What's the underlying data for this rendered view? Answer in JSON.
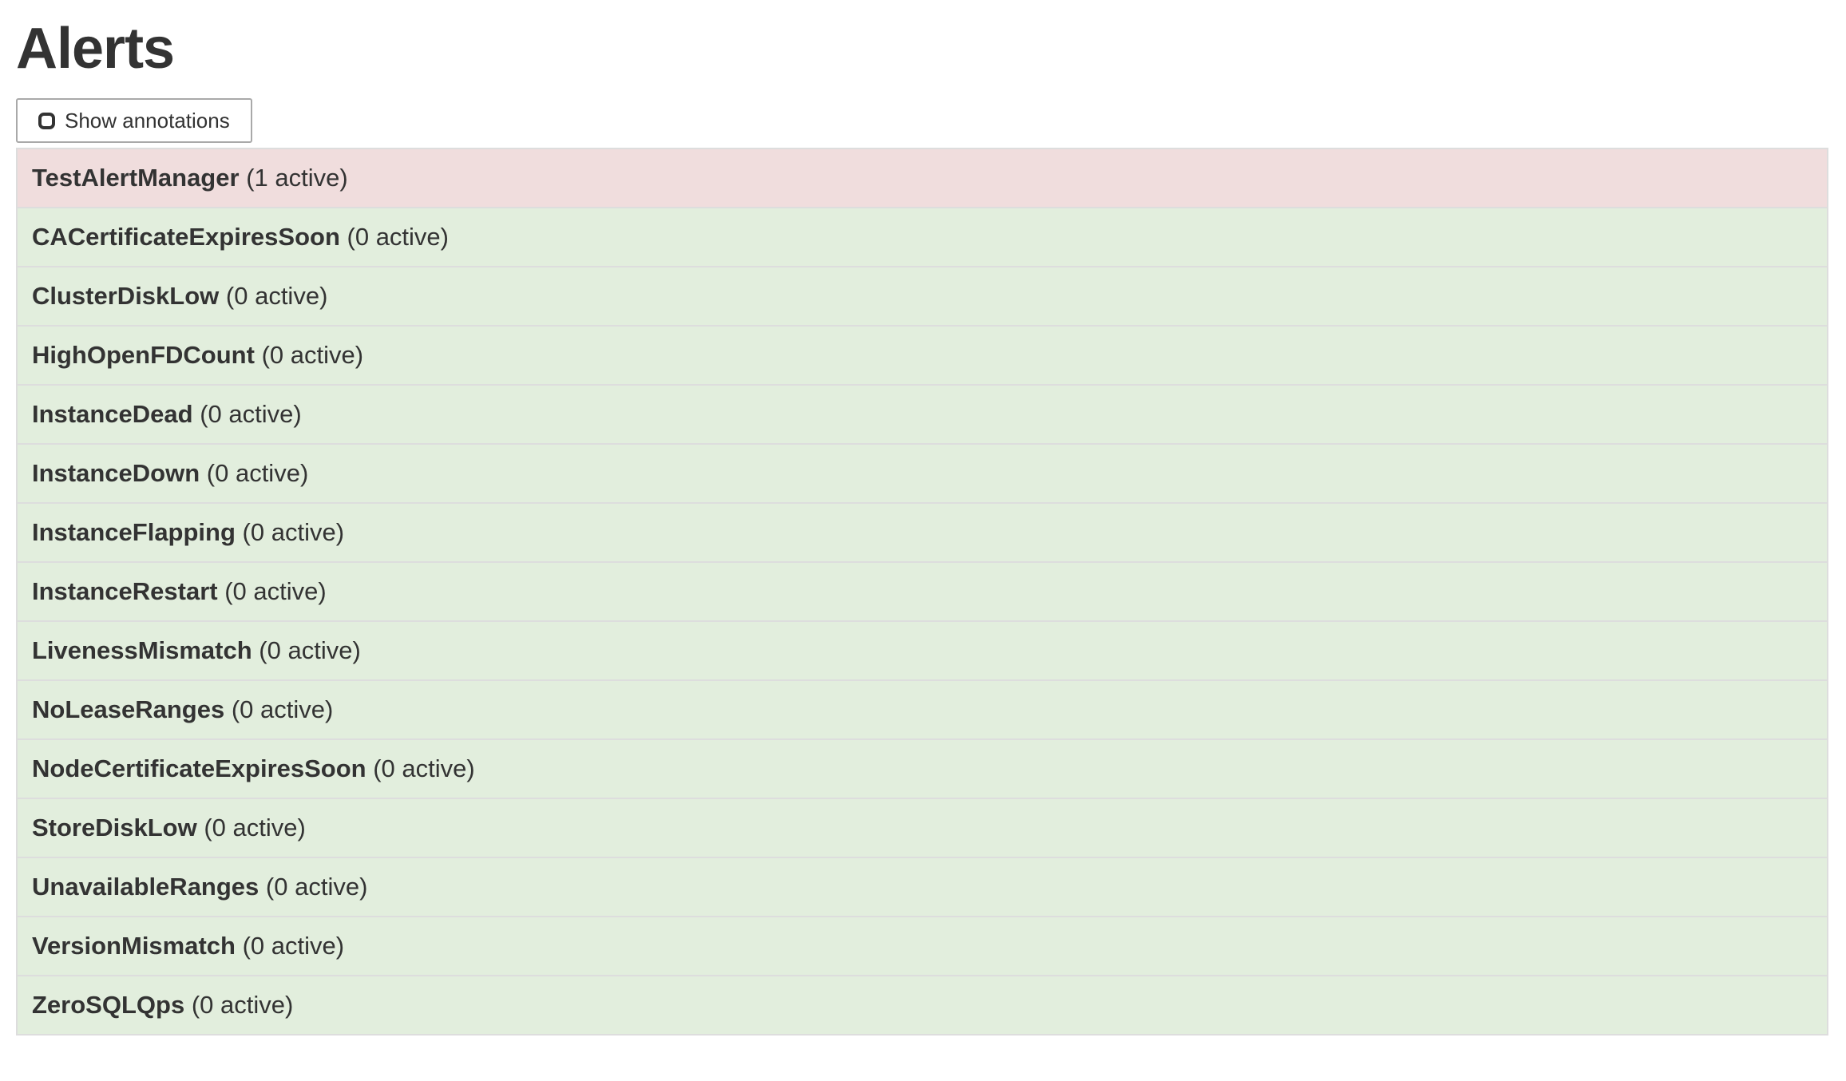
{
  "page": {
    "title": "Alerts"
  },
  "toolbar": {
    "show_annotations_label": "Show annotations",
    "checkbox_checked": false
  },
  "alerts": [
    {
      "name": "TestAlertManager",
      "active_count": 1,
      "active_label": "(1 active)",
      "state": "firing"
    },
    {
      "name": "CACertificateExpiresSoon",
      "active_count": 0,
      "active_label": "(0 active)",
      "state": "inactive"
    },
    {
      "name": "ClusterDiskLow",
      "active_count": 0,
      "active_label": "(0 active)",
      "state": "inactive"
    },
    {
      "name": "HighOpenFDCount",
      "active_count": 0,
      "active_label": "(0 active)",
      "state": "inactive"
    },
    {
      "name": "InstanceDead",
      "active_count": 0,
      "active_label": "(0 active)",
      "state": "inactive"
    },
    {
      "name": "InstanceDown",
      "active_count": 0,
      "active_label": "(0 active)",
      "state": "inactive"
    },
    {
      "name": "InstanceFlapping",
      "active_count": 0,
      "active_label": "(0 active)",
      "state": "inactive"
    },
    {
      "name": "InstanceRestart",
      "active_count": 0,
      "active_label": "(0 active)",
      "state": "inactive"
    },
    {
      "name": "LivenessMismatch",
      "active_count": 0,
      "active_label": "(0 active)",
      "state": "inactive"
    },
    {
      "name": "NoLeaseRanges",
      "active_count": 0,
      "active_label": "(0 active)",
      "state": "inactive"
    },
    {
      "name": "NodeCertificateExpiresSoon",
      "active_count": 0,
      "active_label": "(0 active)",
      "state": "inactive"
    },
    {
      "name": "StoreDiskLow",
      "active_count": 0,
      "active_label": "(0 active)",
      "state": "inactive"
    },
    {
      "name": "UnavailableRanges",
      "active_count": 0,
      "active_label": "(0 active)",
      "state": "inactive"
    },
    {
      "name": "VersionMismatch",
      "active_count": 0,
      "active_label": "(0 active)",
      "state": "inactive"
    },
    {
      "name": "ZeroSQLQps",
      "active_count": 0,
      "active_label": "(0 active)",
      "state": "inactive"
    }
  ],
  "colors": {
    "firing_bg": "#f0dddd",
    "inactive_bg": "#e2eedd",
    "row_border": "#dddddd",
    "text": "#333333",
    "button_border": "#a9a9a9"
  }
}
